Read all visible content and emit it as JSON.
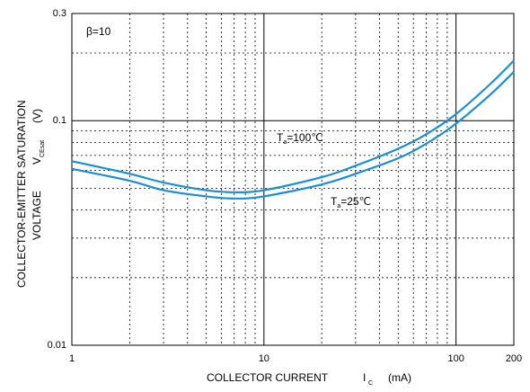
{
  "chart_data": {
    "type": "line",
    "x_scale": "log",
    "y_scale": "log",
    "xlim": [
      1,
      200
    ],
    "ylim": [
      0.01,
      0.3
    ],
    "x_ticks": [
      {
        "value": 1,
        "label": "1"
      },
      {
        "value": 10,
        "label": "10"
      },
      {
        "value": 100,
        "label": "100"
      },
      {
        "value": 200,
        "label": "200"
      }
    ],
    "y_ticks": [
      {
        "value": 0.01,
        "label": "0.01"
      },
      {
        "value": 0.1,
        "label": "0.1"
      },
      {
        "value": 0.3,
        "label": "0.3"
      }
    ],
    "grid": true,
    "line_color": "#1a8fd1",
    "xlabel": {
      "main": "COLLECTOR CURRENT",
      "symbol": "I",
      "sub": "C",
      "unit": "(mA)"
    },
    "ylabel": {
      "line1": "COLLECTOR-EMITTER SATURATION",
      "line2": "VOLTAGE",
      "symbol": "V",
      "sub": "CEsat",
      "unit": "(V)"
    },
    "condition": "β=10",
    "series": [
      {
        "name_main": "T",
        "name_sub": "a",
        "name_rest": "=100℃",
        "x": [
          1,
          2,
          3,
          5,
          7,
          10,
          20,
          30,
          50,
          70,
          100,
          150,
          200
        ],
        "y": [
          0.066,
          0.058,
          0.053,
          0.049,
          0.048,
          0.049,
          0.056,
          0.063,
          0.075,
          0.087,
          0.107,
          0.145,
          0.185
        ]
      },
      {
        "name_main": "T",
        "name_sub": "a",
        "name_rest": "=25℃",
        "x": [
          1,
          2,
          3,
          5,
          7,
          10,
          20,
          30,
          50,
          70,
          100,
          150,
          200
        ],
        "y": [
          0.061,
          0.054,
          0.049,
          0.046,
          0.045,
          0.046,
          0.052,
          0.058,
          0.068,
          0.079,
          0.097,
          0.13,
          0.165
        ]
      }
    ]
  }
}
